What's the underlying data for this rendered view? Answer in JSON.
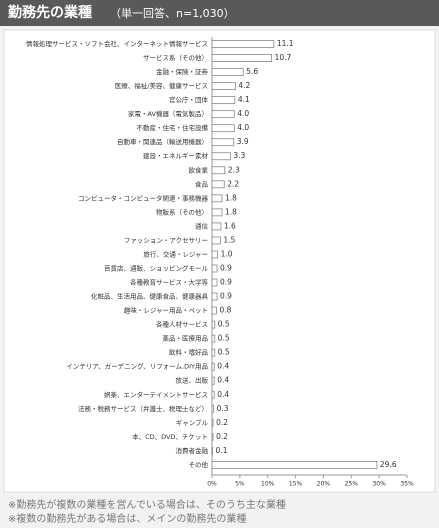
{
  "chart_data": {
    "type": "hbar",
    "title": "勤務先の業種",
    "subtitle": "（単一回答、n=1,030）",
    "categories": [
      "情報処理サービス・ソフト会社、インターネット情報サービス",
      "サービス系（その他）",
      "金融・保険・証券",
      "医療、福祉/美容、健康サービス",
      "官公庁・団体",
      "家電・AV機器（電気製品）",
      "不動産・住宅・住宅設備",
      "自動車・関連品（輸送用機器）",
      "建設・エネルギー素材",
      "飲食業",
      "食品",
      "コンピュータ・コンピュータ関連・事務機器",
      "物販系（その他）",
      "通信",
      "ファッション・アクセサリー",
      "旅行、交通・レジャー",
      "百貨店、通販、ショッピングモール",
      "各種教育サービス・大学等",
      "化粧品、生活用品、健康食品、健康器具",
      "趣味・レジャー用品・ペット",
      "各種人材サービス",
      "薬品・医療用品",
      "飲料・嗜好品",
      "インテリア、ガーデニング、リフォーム,DIY用品",
      "放送、出版",
      "娯楽、エンターテイメントサービス",
      "法務・税務サービス（弁護士、税理士など）",
      "ギャンブル",
      "本、CD、DVD、チケット",
      "消費者金融",
      "その他"
    ],
    "values": [
      11.1,
      10.7,
      5.6,
      4.2,
      4.1,
      4.0,
      4.0,
      3.9,
      3.3,
      2.3,
      2.2,
      1.8,
      1.8,
      1.6,
      1.5,
      1.0,
      0.9,
      0.9,
      0.9,
      0.8,
      0.5,
      0.5,
      0.5,
      0.4,
      0.4,
      0.4,
      0.3,
      0.2,
      0.2,
      0.1,
      29.6
    ],
    "value_labels": [
      "11.1",
      "10.7",
      "5.6",
      "4.2",
      "4.1",
      "4.0",
      "4.0",
      "3.9",
      "3.3",
      "2.3",
      "2.2",
      "1.8",
      "1.8",
      "1.6",
      "1.5",
      "1.0",
      "0.9",
      "0.9",
      "0.9",
      "0.8",
      "0.5",
      "0.5",
      "0.5",
      "0.4",
      "0.4",
      "0.4",
      "0.3",
      "0.2",
      "0.2",
      "0.1",
      "29.6"
    ],
    "color": "#ffffff",
    "xlim": [
      0,
      35
    ],
    "xticks": [
      {
        "value": 0,
        "label": "0%"
      },
      {
        "value": 5,
        "label": "5%"
      },
      {
        "value": 10,
        "label": "10%"
      },
      {
        "value": 15,
        "label": "15%"
      },
      {
        "value": 20,
        "label": "20%"
      },
      {
        "value": 25,
        "label": "25%"
      },
      {
        "value": 30,
        "label": "30%"
      },
      {
        "value": 35,
        "label": "35%"
      }
    ],
    "notes": [
      "※勤務先が複数の業種を営んでいる場合は、そのうち主な業種",
      "※複数の勤務先がある場合は、メインの勤務先の業種"
    ]
  }
}
